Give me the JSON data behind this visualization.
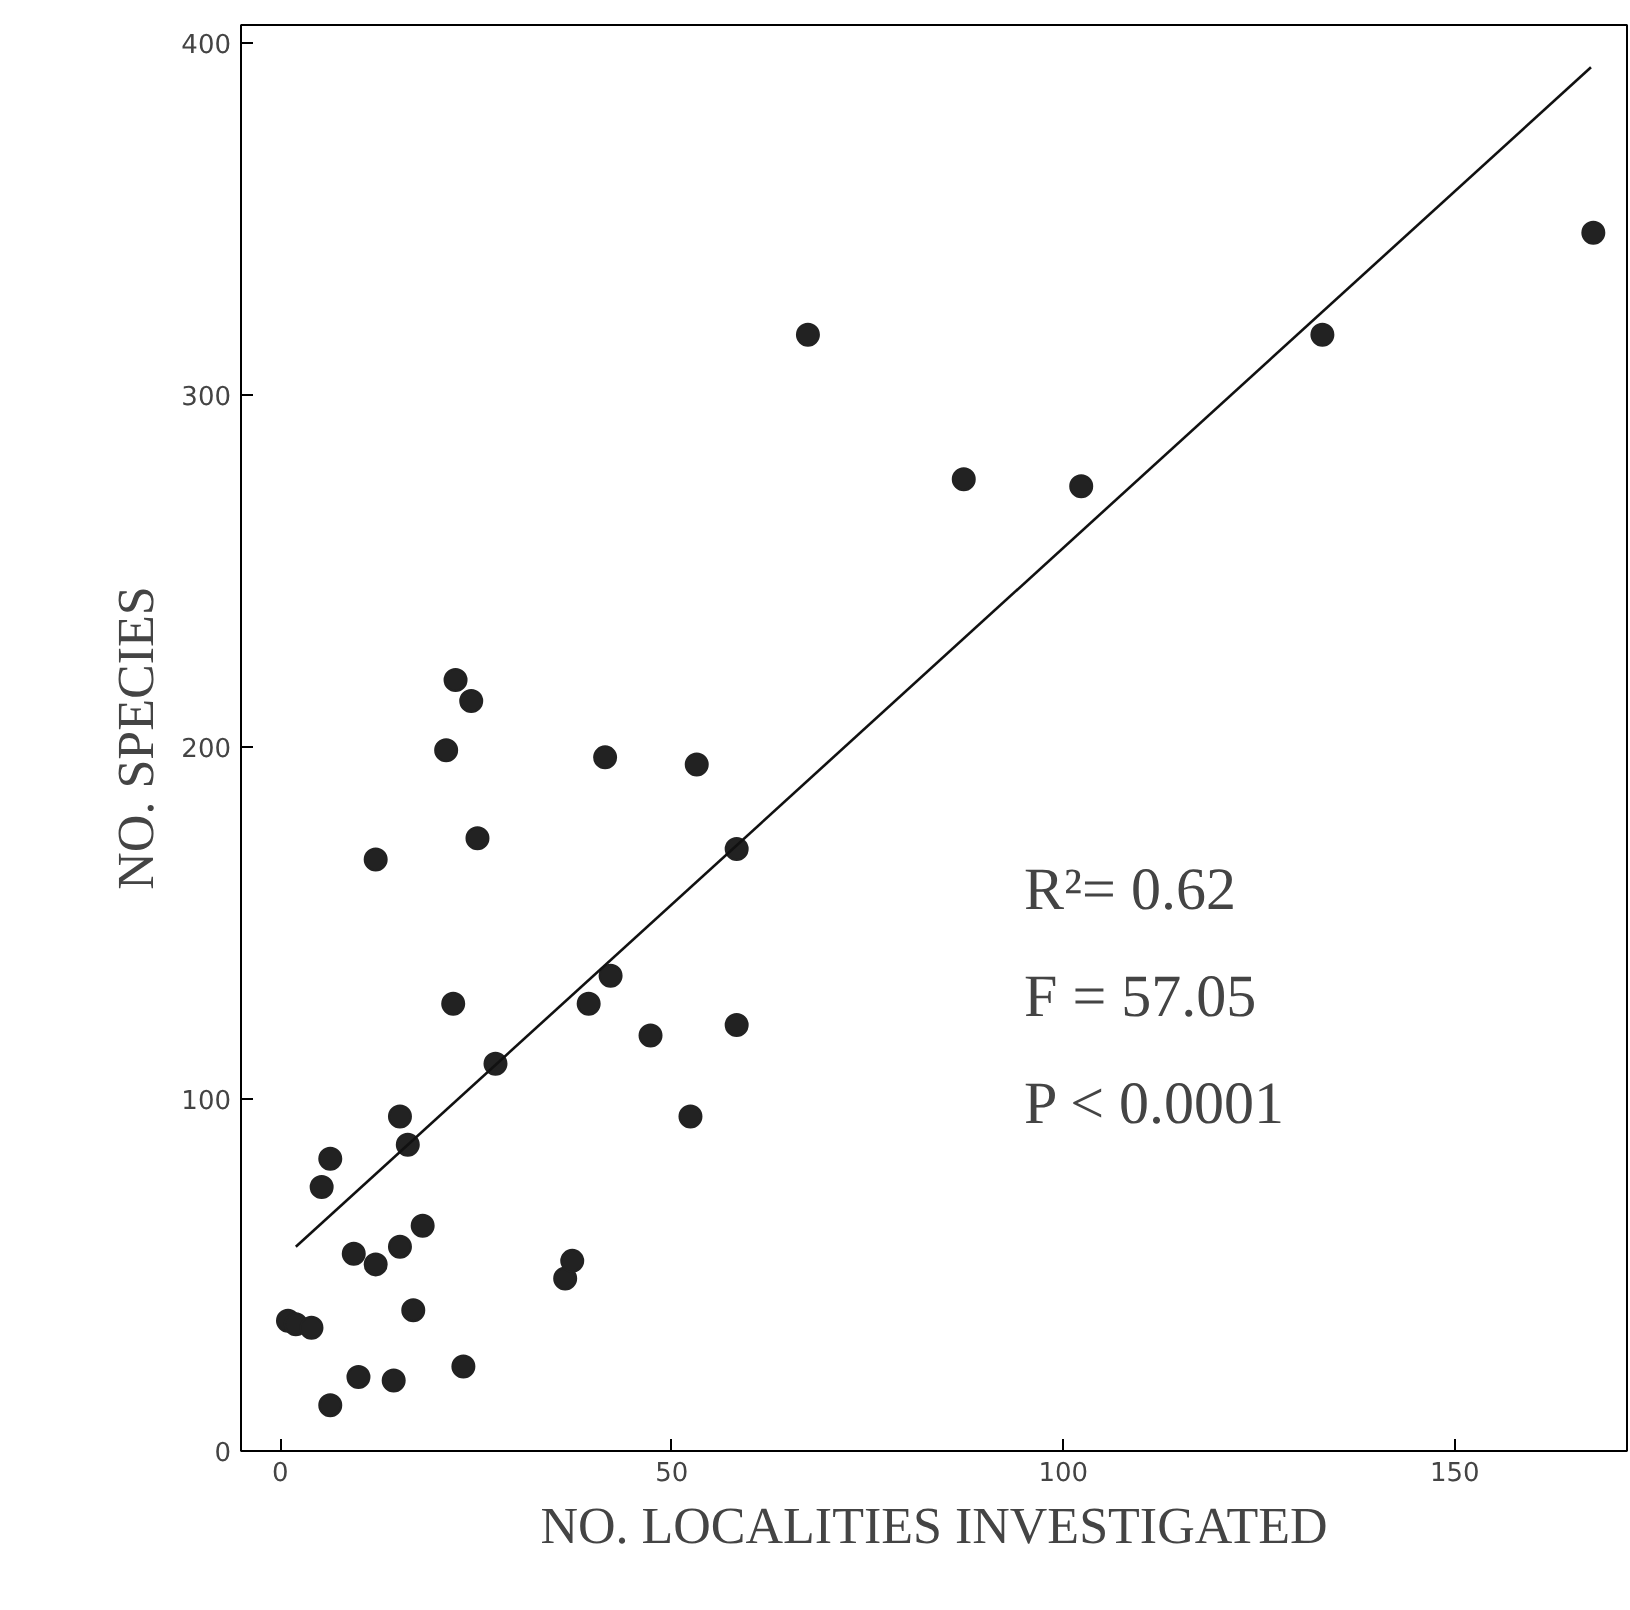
{
  "chart_data": {
    "type": "scatter",
    "xlabel": "NO. LOCALITIES INVESTIGATED",
    "ylabel": "NO. SPECIES",
    "xlim": [
      -5,
      172
    ],
    "ylim": [
      0,
      405
    ],
    "xticks": [
      0,
      50,
      100,
      150
    ],
    "yticks": [
      0,
      100,
      200,
      300,
      400
    ],
    "grid": false,
    "annotations": [
      "R²= 0.62",
      "F = 57.05",
      "P < 0.0001"
    ],
    "series": [
      {
        "color": "#222222",
        "marker": "circle",
        "x": [
          1,
          2,
          4,
          6.4,
          10,
          14.5,
          23.4,
          17,
          9.4,
          12.2,
          15.3,
          18.2,
          5.3,
          6.4,
          15.3,
          16.3,
          27.5,
          22.1,
          12.2,
          25.2,
          36.4,
          37.3,
          39.4,
          42.2,
          47.3,
          52.4,
          58.3,
          58.3,
          22.4,
          24.4,
          21.2,
          41.5,
          53.2,
          67.4,
          87.3,
          102.3,
          133.1,
          167.7
        ],
        "values": [
          37,
          36,
          35,
          13,
          21,
          20,
          24,
          40,
          56,
          53,
          58,
          64,
          75,
          83,
          95,
          87,
          110,
          127,
          168,
          174,
          49,
          54,
          127,
          135,
          118,
          95,
          121,
          171,
          219,
          213,
          199,
          197,
          195,
          317,
          276,
          274,
          317,
          346
        ]
      },
      {
        "type": "line",
        "color": "#111111",
        "line_style": "solid",
        "x": [
          2,
          167.4
        ],
        "values": [
          58,
          393
        ]
      }
    ]
  }
}
